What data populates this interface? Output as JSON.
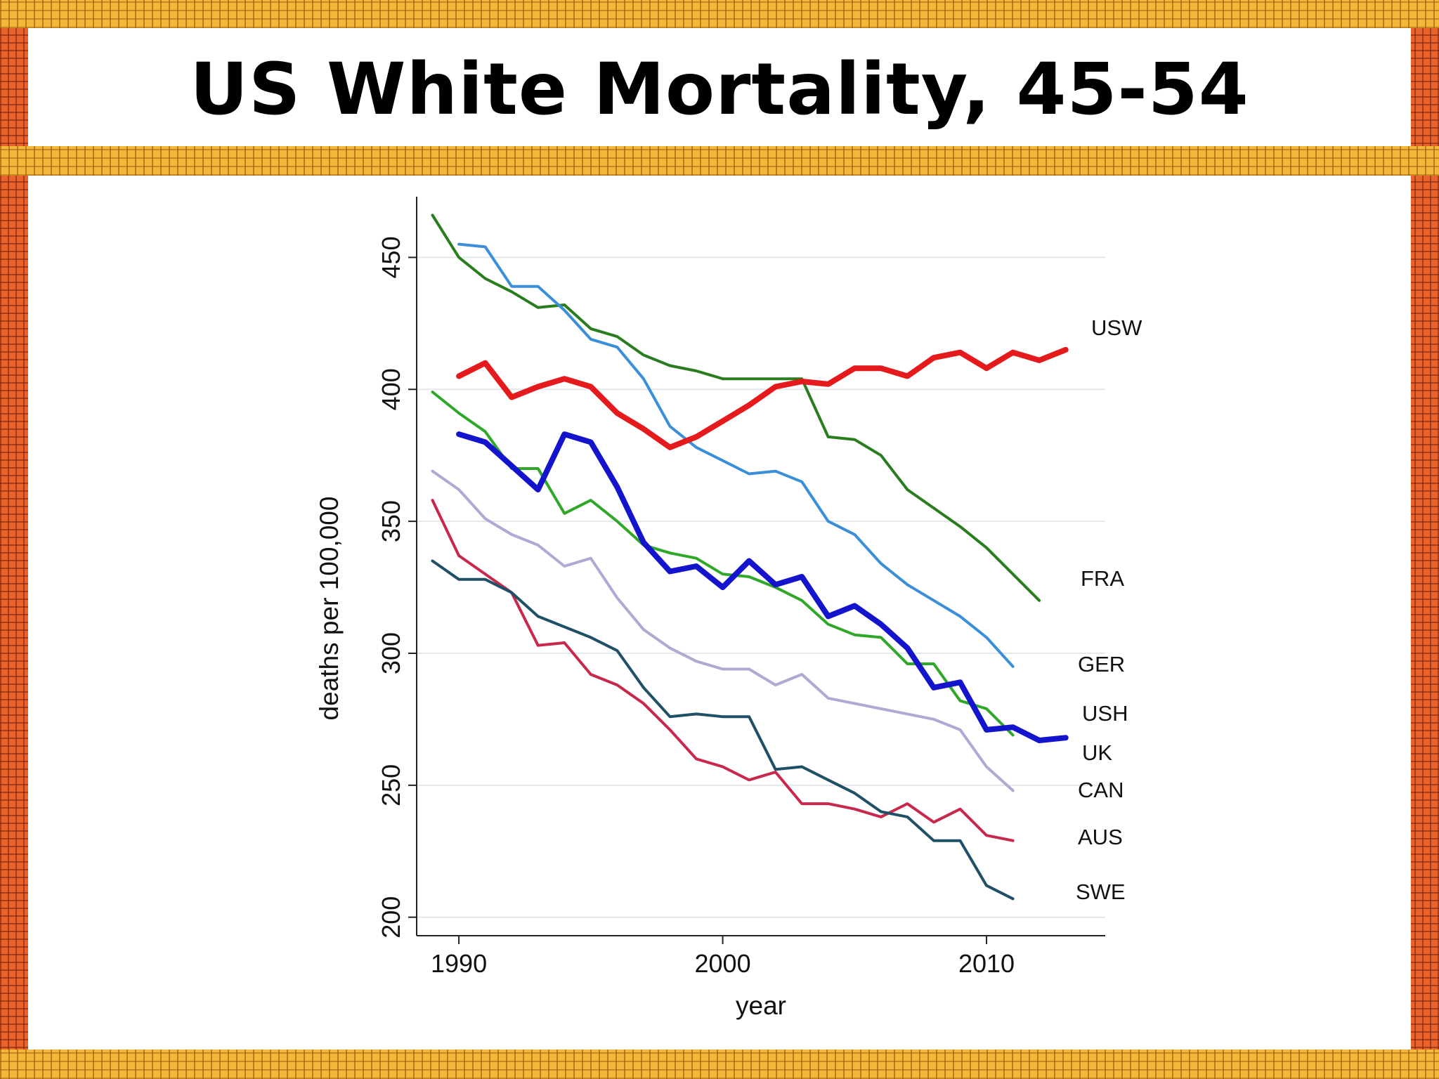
{
  "slide": {
    "title": "US White Mortality, 45-54"
  },
  "chart_data": {
    "type": "line",
    "title": "",
    "xlabel": "year",
    "ylabel": "deaths per 100,000",
    "xlim": [
      1988.4,
      2014.5
    ],
    "ylim": [
      193,
      473
    ],
    "x_ticks": [
      "1990",
      "2000",
      "2010"
    ],
    "y_ticks": [
      "200",
      "250",
      "300",
      "350",
      "400",
      "450"
    ],
    "grid": "horizontal",
    "legend": "inline labels at line ends",
    "series": [
      {
        "name": "USW",
        "color": "#e41a1c",
        "width": 8,
        "x": [
          1990,
          1991,
          1992,
          1993,
          1994,
          1995,
          1996,
          1997,
          1998,
          1999,
          2000,
          2001,
          2002,
          2003,
          2004,
          2005,
          2006,
          2007,
          2008,
          2009,
          2010,
          2011,
          2012,
          2013
        ],
        "y": [
          405,
          410,
          397,
          401,
          404,
          401,
          391,
          385,
          378,
          382,
          388,
          394,
          401,
          403,
          402,
          408,
          408,
          405,
          412,
          414,
          408,
          414,
          411,
          415
        ]
      },
      {
        "name": "FRA",
        "color": "#2a7d1e",
        "width": 4,
        "x": [
          1989,
          1990,
          1991,
          1992,
          1993,
          1994,
          1995,
          1996,
          1997,
          1998,
          1999,
          2000,
          2001,
          2002,
          2003,
          2004,
          2005,
          2006,
          2007,
          2008,
          2009,
          2010,
          2011,
          2012
        ],
        "y": [
          466,
          450,
          442,
          437,
          431,
          432,
          423,
          420,
          413,
          409,
          407,
          404,
          404,
          404,
          404,
          382,
          381,
          375,
          362,
          355,
          348,
          340,
          330,
          320
        ]
      },
      {
        "name": "GER",
        "color": "#3a8fd8",
        "width": 4,
        "x": [
          1990,
          1991,
          1992,
          1993,
          1994,
          1995,
          1996,
          1997,
          1998,
          1999,
          2000,
          2001,
          2002,
          2003,
          2004,
          2005,
          2006,
          2007,
          2008,
          2009,
          2010,
          2011
        ],
        "y": [
          455,
          454,
          439,
          439,
          430,
          419,
          416,
          404,
          386,
          378,
          373,
          368,
          369,
          365,
          350,
          345,
          334,
          326,
          320,
          314,
          306,
          295
        ]
      },
      {
        "name": "USH",
        "color": "#1414cc",
        "width": 8,
        "x": [
          1990,
          1991,
          1992,
          1993,
          1994,
          1995,
          1996,
          1997,
          1998,
          1999,
          2000,
          2001,
          2002,
          2003,
          2004,
          2005,
          2006,
          2007,
          2008,
          2009,
          2010,
          2011,
          2012,
          2013
        ],
        "y": [
          383,
          380,
          371,
          362,
          383,
          380,
          363,
          342,
          331,
          333,
          325,
          335,
          326,
          329,
          314,
          318,
          311,
          302,
          287,
          289,
          271,
          272,
          267,
          268
        ]
      },
      {
        "name": "UK",
        "color": "#2fa82a",
        "width": 4,
        "x": [
          1989,
          1990,
          1991,
          1992,
          1993,
          1994,
          1995,
          1996,
          1997,
          1998,
          1999,
          2000,
          2001,
          2002,
          2003,
          2004,
          2005,
          2006,
          2007,
          2008,
          2009,
          2010,
          2011
        ],
        "y": [
          399,
          391,
          384,
          370,
          370,
          353,
          358,
          350,
          341,
          338,
          336,
          330,
          329,
          325,
          320,
          311,
          307,
          306,
          296,
          296,
          282,
          279,
          269
        ]
      },
      {
        "name": "CAN",
        "color": "#aeaad4",
        "width": 4,
        "x": [
          1989,
          1990,
          1991,
          1992,
          1993,
          1994,
          1995,
          1996,
          1997,
          1998,
          1999,
          2000,
          2001,
          2002,
          2003,
          2004,
          2005,
          2006,
          2007,
          2008,
          2009,
          2010,
          2011
        ],
        "y": [
          369,
          362,
          351,
          345,
          341,
          333,
          336,
          321,
          309,
          302,
          297,
          294,
          294,
          288,
          292,
          283,
          281,
          279,
          277,
          275,
          271,
          257,
          248
        ]
      },
      {
        "name": "AUS",
        "color": "#c8284c",
        "width": 4,
        "x": [
          1989,
          1990,
          1991,
          1992,
          1993,
          1994,
          1995,
          1996,
          1997,
          1998,
          1999,
          2000,
          2001,
          2002,
          2003,
          2004,
          2005,
          2006,
          2007,
          2008,
          2009,
          2010,
          2011
        ],
        "y": [
          358,
          337,
          330,
          323,
          303,
          304,
          292,
          288,
          281,
          271,
          260,
          257,
          252,
          255,
          243,
          243,
          241,
          238,
          243,
          236,
          241,
          231,
          229
        ]
      },
      {
        "name": "SWE",
        "color": "#1f5068",
        "width": 4,
        "x": [
          1989,
          1990,
          1991,
          1992,
          1993,
          1994,
          1995,
          1996,
          1997,
          1998,
          1999,
          2000,
          2001,
          2002,
          2003,
          2004,
          2005,
          2006,
          2007,
          2008,
          2009,
          2010,
          2011
        ],
        "y": [
          335,
          328,
          328,
          323,
          314,
          310,
          306,
          301,
          287,
          276,
          277,
          276,
          276,
          256,
          257,
          252,
          247,
          240,
          238,
          229,
          229,
          212,
          207
        ]
      }
    ]
  }
}
